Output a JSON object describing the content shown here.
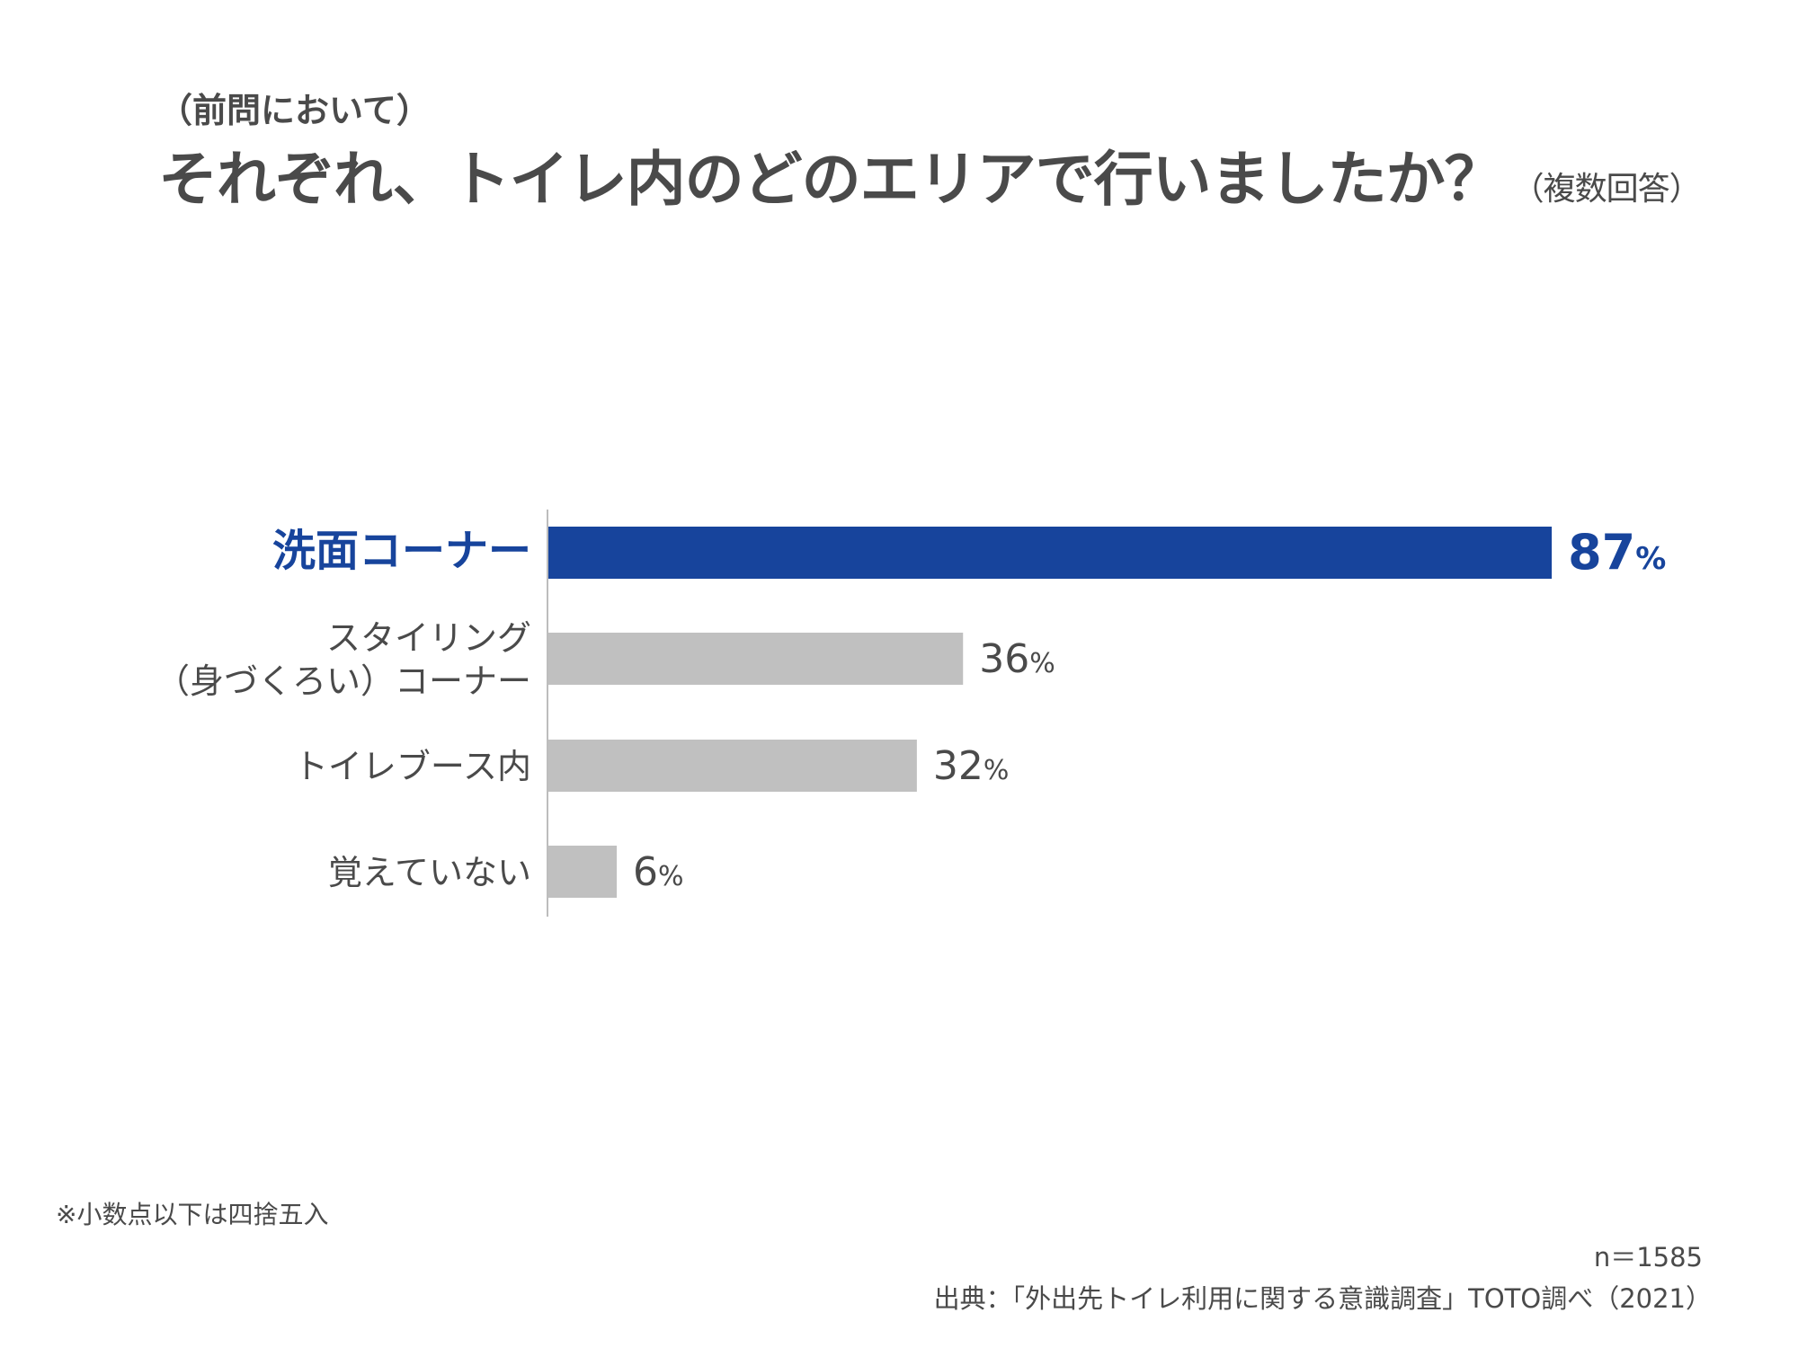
{
  "header": {
    "pre_title": "（前問において）",
    "title": "それぞれ、トイレ内のどのエリアで行いましたか？",
    "title_note": "（複数回答）"
  },
  "chart_data": {
    "type": "bar",
    "orientation": "horizontal",
    "categories": [
      [
        "洗面コーナー"
      ],
      [
        "スタイリング",
        "（身づくろい）コーナー"
      ],
      [
        "トイレブース内"
      ],
      [
        "覚えていない"
      ]
    ],
    "values": [
      87,
      36,
      32,
      6
    ],
    "value_labels": [
      "87",
      "36",
      "32",
      "6"
    ],
    "unit": "%",
    "highlight_index": 0,
    "xlim": [
      0,
      100
    ],
    "colors": {
      "highlight": "#17449c",
      "default": "#c0c0c0",
      "axis": "#bdbdbd",
      "text": "#4a4a4a"
    }
  },
  "footer": {
    "note": "※小数点以下は四捨五入",
    "n": "n＝1585",
    "source": "出典：「外出先トイレ利用に関する意識調査」TOTO調べ（2021）"
  }
}
